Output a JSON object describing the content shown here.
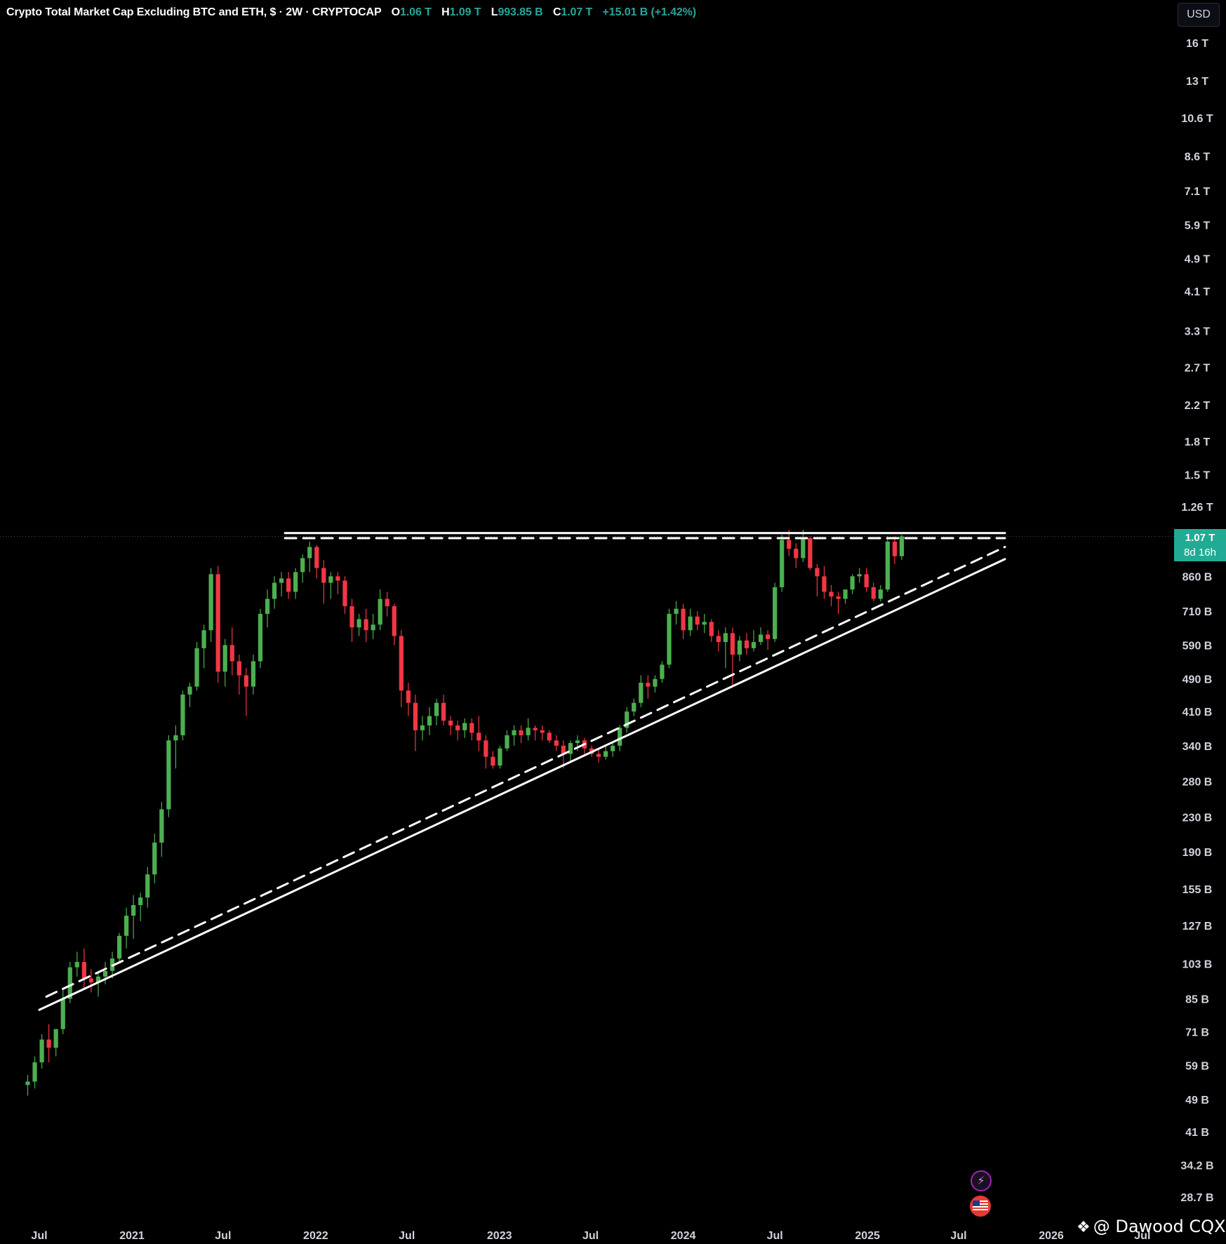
{
  "header": {
    "title": "Crypto Total Market Cap Excluding BTC and ETH, $ · 2W · CRYPTOCAP",
    "open_key": "O",
    "open": "1.06 T",
    "high_key": "H",
    "high": "1.09 T",
    "low_key": "L",
    "low": "993.85 B",
    "close_key": "C",
    "close": "1.07 T",
    "change": "+15.01 B (+1.42%)"
  },
  "currency_button": "USD",
  "last_price": {
    "value": "1.07 T",
    "countdown": "8d 16h"
  },
  "watermark": "@ Dawood CQX",
  "icons": {
    "alert": "lightning-icon",
    "region": "us-flag-icon"
  },
  "colors": {
    "up": "#4caf50",
    "down": "#f23645",
    "tag": "#22ab94",
    "lines": "#ffffff"
  },
  "chart_data": {
    "type": "candlestick",
    "scale": "log",
    "interval": "2W",
    "y_ticks": [
      "16 T",
      "13 T",
      "10.6 T",
      "8.6 T",
      "7.1 T",
      "5.9 T",
      "4.9 T",
      "4.1 T",
      "3.3 T",
      "2.7 T",
      "2.2 T",
      "1.8 T",
      "1.5 T",
      "1.26 T",
      "860 B",
      "710 B",
      "590 B",
      "490 B",
      "410 B",
      "340 B",
      "280 B",
      "230 B",
      "190 B",
      "155 B",
      "127 B",
      "103 B",
      "85 B",
      "71 B",
      "59 B",
      "49 B",
      "41 B",
      "34.2 B",
      "28.7 B"
    ],
    "y_tick_values": [
      16000,
      13000,
      10600,
      8600,
      7100,
      5900,
      4900,
      4100,
      3300,
      2700,
      2200,
      1800,
      1500,
      1260,
      860,
      710,
      590,
      490,
      410,
      340,
      280,
      230,
      190,
      155,
      127,
      103,
      85,
      71,
      59,
      49,
      41,
      34.2,
      28.7
    ],
    "x_ticks": [
      "Jul",
      "2021",
      "Jul",
      "2022",
      "Jul",
      "2023",
      "Jul",
      "2024",
      "Jul",
      "2025",
      "Jul",
      "2026",
      "Jul"
    ],
    "x_tick_dates": [
      "2020-07-01",
      "2021-01-01",
      "2021-07-01",
      "2022-01-01",
      "2022-07-01",
      "2023-01-01",
      "2023-07-01",
      "2024-01-01",
      "2024-07-01",
      "2025-01-01",
      "2025-07-01",
      "2026-01-01",
      "2026-07-01"
    ],
    "candles_start_date": "2020-06-01",
    "candles_ohlc_billions": [
      [
        53,
        56,
        50,
        54
      ],
      [
        54,
        62,
        52,
        60
      ],
      [
        60,
        70,
        58,
        68
      ],
      [
        68,
        74,
        60,
        65
      ],
      [
        65,
        72,
        62,
        72
      ],
      [
        72,
        90,
        70,
        85
      ],
      [
        85,
        104,
        83,
        101
      ],
      [
        101,
        110,
        96,
        104
      ],
      [
        104,
        112,
        90,
        95
      ],
      [
        95,
        100,
        88,
        93
      ],
      [
        93,
        98,
        86,
        96
      ],
      [
        96,
        104,
        92,
        99
      ],
      [
        99,
        110,
        95,
        106
      ],
      [
        106,
        122,
        104,
        120
      ],
      [
        120,
        140,
        112,
        134
      ],
      [
        134,
        150,
        118,
        142
      ],
      [
        142,
        152,
        130,
        148
      ],
      [
        148,
        175,
        140,
        168
      ],
      [
        168,
        210,
        160,
        200
      ],
      [
        200,
        250,
        185,
        240
      ],
      [
        240,
        360,
        230,
        350
      ],
      [
        350,
        380,
        300,
        360
      ],
      [
        360,
        460,
        350,
        450
      ],
      [
        450,
        480,
        420,
        470
      ],
      [
        470,
        600,
        460,
        580
      ],
      [
        580,
        660,
        520,
        640
      ],
      [
        640,
        900,
        600,
        870
      ],
      [
        870,
        910,
        480,
        510
      ],
      [
        510,
        610,
        470,
        590
      ],
      [
        590,
        650,
        500,
        540
      ],
      [
        540,
        560,
        450,
        500
      ],
      [
        500,
        520,
        400,
        470
      ],
      [
        470,
        560,
        450,
        540
      ],
      [
        540,
        720,
        520,
        700
      ],
      [
        700,
        800,
        650,
        760
      ],
      [
        760,
        860,
        720,
        830
      ],
      [
        830,
        880,
        770,
        850
      ],
      [
        850,
        880,
        760,
        790
      ],
      [
        790,
        900,
        760,
        880
      ],
      [
        880,
        970,
        830,
        950
      ],
      [
        950,
        1040,
        880,
        1010
      ],
      [
        1010,
        1020,
        850,
        900
      ],
      [
        900,
        940,
        740,
        830
      ],
      [
        830,
        880,
        760,
        860
      ],
      [
        860,
        880,
        780,
        840
      ],
      [
        840,
        860,
        700,
        730
      ],
      [
        730,
        760,
        600,
        650
      ],
      [
        650,
        700,
        620,
        680
      ],
      [
        680,
        720,
        600,
        640
      ],
      [
        640,
        700,
        610,
        660
      ],
      [
        660,
        800,
        640,
        760
      ],
      [
        760,
        790,
        690,
        730
      ],
      [
        730,
        740,
        590,
        620
      ],
      [
        620,
        640,
        420,
        460
      ],
      [
        460,
        480,
        400,
        430
      ],
      [
        430,
        450,
        330,
        370
      ],
      [
        370,
        400,
        350,
        380
      ],
      [
        380,
        420,
        360,
        400
      ],
      [
        400,
        440,
        380,
        430
      ],
      [
        430,
        450,
        380,
        390
      ],
      [
        390,
        400,
        360,
        380
      ],
      [
        380,
        390,
        350,
        370
      ],
      [
        370,
        395,
        355,
        385
      ],
      [
        385,
        395,
        350,
        365
      ],
      [
        365,
        400,
        330,
        350
      ],
      [
        350,
        360,
        300,
        320
      ],
      [
        320,
        330,
        300,
        305
      ],
      [
        305,
        340,
        300,
        335
      ],
      [
        335,
        370,
        330,
        360
      ],
      [
        360,
        380,
        340,
        370
      ],
      [
        370,
        380,
        345,
        360
      ],
      [
        360,
        395,
        350,
        375
      ],
      [
        375,
        380,
        350,
        370
      ],
      [
        370,
        380,
        350,
        365
      ],
      [
        365,
        370,
        345,
        350
      ],
      [
        350,
        360,
        330,
        340
      ],
      [
        340,
        350,
        300,
        325
      ],
      [
        325,
        350,
        310,
        345
      ],
      [
        345,
        360,
        330,
        350
      ],
      [
        350,
        355,
        325,
        335
      ],
      [
        335,
        340,
        320,
        325
      ],
      [
        325,
        335,
        310,
        320
      ],
      [
        320,
        340,
        315,
        330
      ],
      [
        330,
        345,
        320,
        340
      ],
      [
        340,
        380,
        330,
        375
      ],
      [
        375,
        420,
        365,
        410
      ],
      [
        410,
        440,
        400,
        430
      ],
      [
        430,
        500,
        420,
        480
      ],
      [
        480,
        500,
        440,
        470
      ],
      [
        470,
        500,
        455,
        490
      ],
      [
        490,
        540,
        480,
        530
      ],
      [
        530,
        720,
        520,
        700
      ],
      [
        700,
        750,
        660,
        720
      ],
      [
        720,
        740,
        610,
        640
      ],
      [
        640,
        720,
        620,
        690
      ],
      [
        690,
        710,
        640,
        660
      ],
      [
        660,
        700,
        630,
        670
      ],
      [
        670,
        680,
        600,
        620
      ],
      [
        620,
        640,
        570,
        600
      ],
      [
        600,
        650,
        520,
        630
      ],
      [
        630,
        650,
        470,
        560
      ],
      [
        560,
        620,
        540,
        605
      ],
      [
        605,
        630,
        560,
        580
      ],
      [
        580,
        640,
        570,
        600
      ],
      [
        600,
        650,
        590,
        625
      ],
      [
        625,
        640,
        575,
        610
      ],
      [
        610,
        830,
        600,
        810
      ],
      [
        810,
        1080,
        790,
        1050
      ],
      [
        1050,
        1110,
        960,
        1000
      ],
      [
        1000,
        1030,
        900,
        950
      ],
      [
        950,
        1110,
        930,
        1060
      ],
      [
        1060,
        1070,
        890,
        900
      ],
      [
        900,
        920,
        770,
        860
      ],
      [
        860,
        910,
        760,
        790
      ],
      [
        790,
        820,
        730,
        770
      ],
      [
        770,
        790,
        700,
        760
      ],
      [
        760,
        800,
        740,
        800
      ],
      [
        800,
        870,
        780,
        860
      ],
      [
        860,
        900,
        830,
        870
      ],
      [
        870,
        900,
        790,
        810
      ],
      [
        810,
        830,
        750,
        760
      ],
      [
        760,
        820,
        750,
        800
      ],
      [
        800,
        1070,
        790,
        1040
      ],
      [
        1040,
        1070,
        920,
        960
      ],
      [
        960,
        1080,
        940,
        1070
      ]
    ],
    "overlays": [
      {
        "kind": "resistance",
        "style": "solid",
        "level": 1090
      },
      {
        "kind": "resistance",
        "style": "dashed",
        "level": 1060
      },
      {
        "kind": "support",
        "style": "solid",
        "from": [
          "2020-07-01",
          80
        ],
        "to": [
          "2025-10-01",
          945
        ]
      },
      {
        "kind": "support",
        "style": "dashed",
        "from": [
          "2020-07-15",
          86
        ],
        "to": [
          "2025-10-01",
          1010
        ]
      }
    ],
    "current_price_line": 1070
  }
}
